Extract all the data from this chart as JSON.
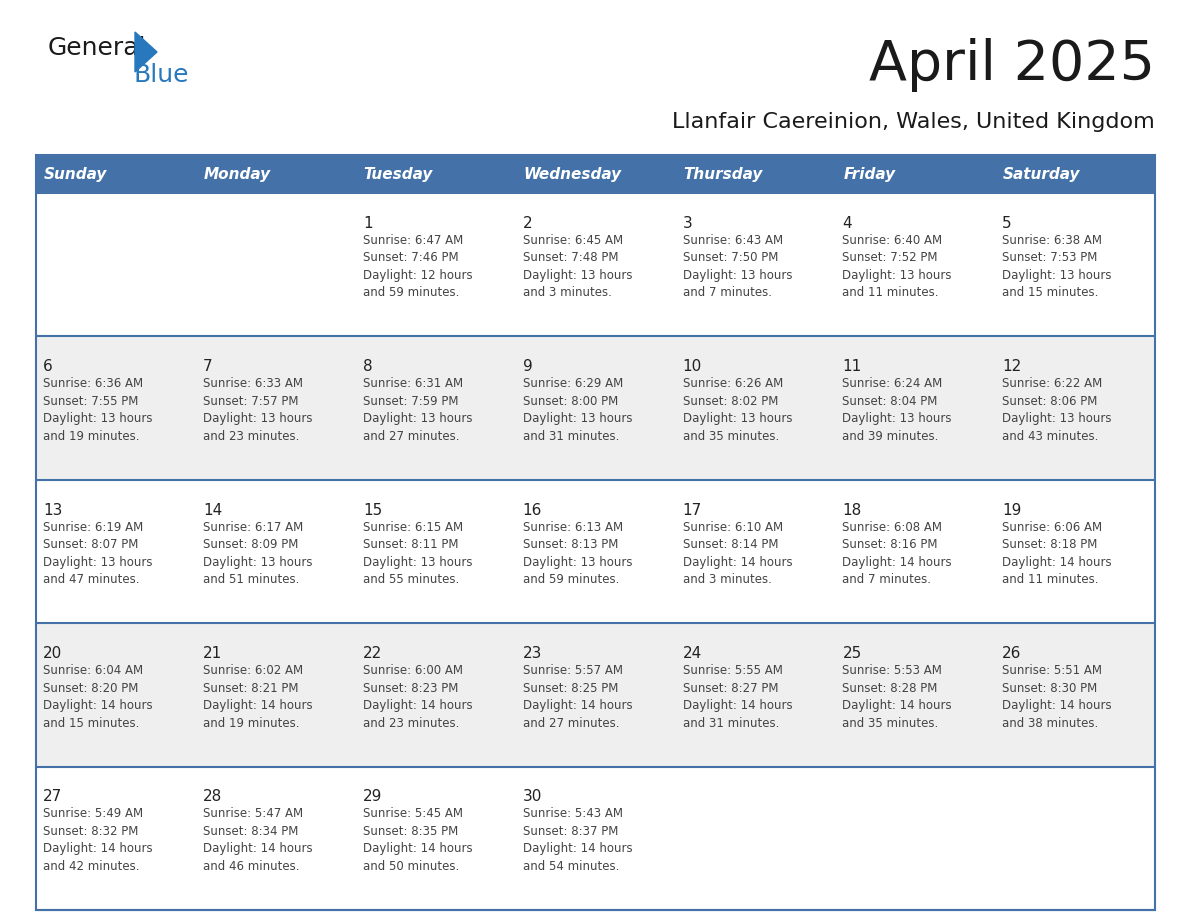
{
  "title": "April 2025",
  "subtitle": "Llanfair Caereinion, Wales, United Kingdom",
  "days_of_week": [
    "Sunday",
    "Monday",
    "Tuesday",
    "Wednesday",
    "Thursday",
    "Friday",
    "Saturday"
  ],
  "header_bg": "#4472A8",
  "header_text": "#FFFFFF",
  "cell_bg_light": "#EFEFEF",
  "cell_bg_white": "#FFFFFF",
  "row_line_color": "#4472A8",
  "day_num_color": "#222222",
  "cell_text_color": "#444444",
  "title_color": "#1a1a1a",
  "subtitle_color": "#1a1a1a",
  "logo_general_color": "#1a1a1a",
  "logo_blue_color": "#2878BE",
  "weeks": [
    [
      {
        "day": null,
        "text": ""
      },
      {
        "day": null,
        "text": ""
      },
      {
        "day": 1,
        "text": "Sunrise: 6:47 AM\nSunset: 7:46 PM\nDaylight: 12 hours\nand 59 minutes."
      },
      {
        "day": 2,
        "text": "Sunrise: 6:45 AM\nSunset: 7:48 PM\nDaylight: 13 hours\nand 3 minutes."
      },
      {
        "day": 3,
        "text": "Sunrise: 6:43 AM\nSunset: 7:50 PM\nDaylight: 13 hours\nand 7 minutes."
      },
      {
        "day": 4,
        "text": "Sunrise: 6:40 AM\nSunset: 7:52 PM\nDaylight: 13 hours\nand 11 minutes."
      },
      {
        "day": 5,
        "text": "Sunrise: 6:38 AM\nSunset: 7:53 PM\nDaylight: 13 hours\nand 15 minutes."
      }
    ],
    [
      {
        "day": 6,
        "text": "Sunrise: 6:36 AM\nSunset: 7:55 PM\nDaylight: 13 hours\nand 19 minutes."
      },
      {
        "day": 7,
        "text": "Sunrise: 6:33 AM\nSunset: 7:57 PM\nDaylight: 13 hours\nand 23 minutes."
      },
      {
        "day": 8,
        "text": "Sunrise: 6:31 AM\nSunset: 7:59 PM\nDaylight: 13 hours\nand 27 minutes."
      },
      {
        "day": 9,
        "text": "Sunrise: 6:29 AM\nSunset: 8:00 PM\nDaylight: 13 hours\nand 31 minutes."
      },
      {
        "day": 10,
        "text": "Sunrise: 6:26 AM\nSunset: 8:02 PM\nDaylight: 13 hours\nand 35 minutes."
      },
      {
        "day": 11,
        "text": "Sunrise: 6:24 AM\nSunset: 8:04 PM\nDaylight: 13 hours\nand 39 minutes."
      },
      {
        "day": 12,
        "text": "Sunrise: 6:22 AM\nSunset: 8:06 PM\nDaylight: 13 hours\nand 43 minutes."
      }
    ],
    [
      {
        "day": 13,
        "text": "Sunrise: 6:19 AM\nSunset: 8:07 PM\nDaylight: 13 hours\nand 47 minutes."
      },
      {
        "day": 14,
        "text": "Sunrise: 6:17 AM\nSunset: 8:09 PM\nDaylight: 13 hours\nand 51 minutes."
      },
      {
        "day": 15,
        "text": "Sunrise: 6:15 AM\nSunset: 8:11 PM\nDaylight: 13 hours\nand 55 minutes."
      },
      {
        "day": 16,
        "text": "Sunrise: 6:13 AM\nSunset: 8:13 PM\nDaylight: 13 hours\nand 59 minutes."
      },
      {
        "day": 17,
        "text": "Sunrise: 6:10 AM\nSunset: 8:14 PM\nDaylight: 14 hours\nand 3 minutes."
      },
      {
        "day": 18,
        "text": "Sunrise: 6:08 AM\nSunset: 8:16 PM\nDaylight: 14 hours\nand 7 minutes."
      },
      {
        "day": 19,
        "text": "Sunrise: 6:06 AM\nSunset: 8:18 PM\nDaylight: 14 hours\nand 11 minutes."
      }
    ],
    [
      {
        "day": 20,
        "text": "Sunrise: 6:04 AM\nSunset: 8:20 PM\nDaylight: 14 hours\nand 15 minutes."
      },
      {
        "day": 21,
        "text": "Sunrise: 6:02 AM\nSunset: 8:21 PM\nDaylight: 14 hours\nand 19 minutes."
      },
      {
        "day": 22,
        "text": "Sunrise: 6:00 AM\nSunset: 8:23 PM\nDaylight: 14 hours\nand 23 minutes."
      },
      {
        "day": 23,
        "text": "Sunrise: 5:57 AM\nSunset: 8:25 PM\nDaylight: 14 hours\nand 27 minutes."
      },
      {
        "day": 24,
        "text": "Sunrise: 5:55 AM\nSunset: 8:27 PM\nDaylight: 14 hours\nand 31 minutes."
      },
      {
        "day": 25,
        "text": "Sunrise: 5:53 AM\nSunset: 8:28 PM\nDaylight: 14 hours\nand 35 minutes."
      },
      {
        "day": 26,
        "text": "Sunrise: 5:51 AM\nSunset: 8:30 PM\nDaylight: 14 hours\nand 38 minutes."
      }
    ],
    [
      {
        "day": 27,
        "text": "Sunrise: 5:49 AM\nSunset: 8:32 PM\nDaylight: 14 hours\nand 42 minutes."
      },
      {
        "day": 28,
        "text": "Sunrise: 5:47 AM\nSunset: 8:34 PM\nDaylight: 14 hours\nand 46 minutes."
      },
      {
        "day": 29,
        "text": "Sunrise: 5:45 AM\nSunset: 8:35 PM\nDaylight: 14 hours\nand 50 minutes."
      },
      {
        "day": 30,
        "text": "Sunrise: 5:43 AM\nSunset: 8:37 PM\nDaylight: 14 hours\nand 54 minutes."
      },
      {
        "day": null,
        "text": ""
      },
      {
        "day": null,
        "text": ""
      },
      {
        "day": null,
        "text": ""
      }
    ]
  ]
}
